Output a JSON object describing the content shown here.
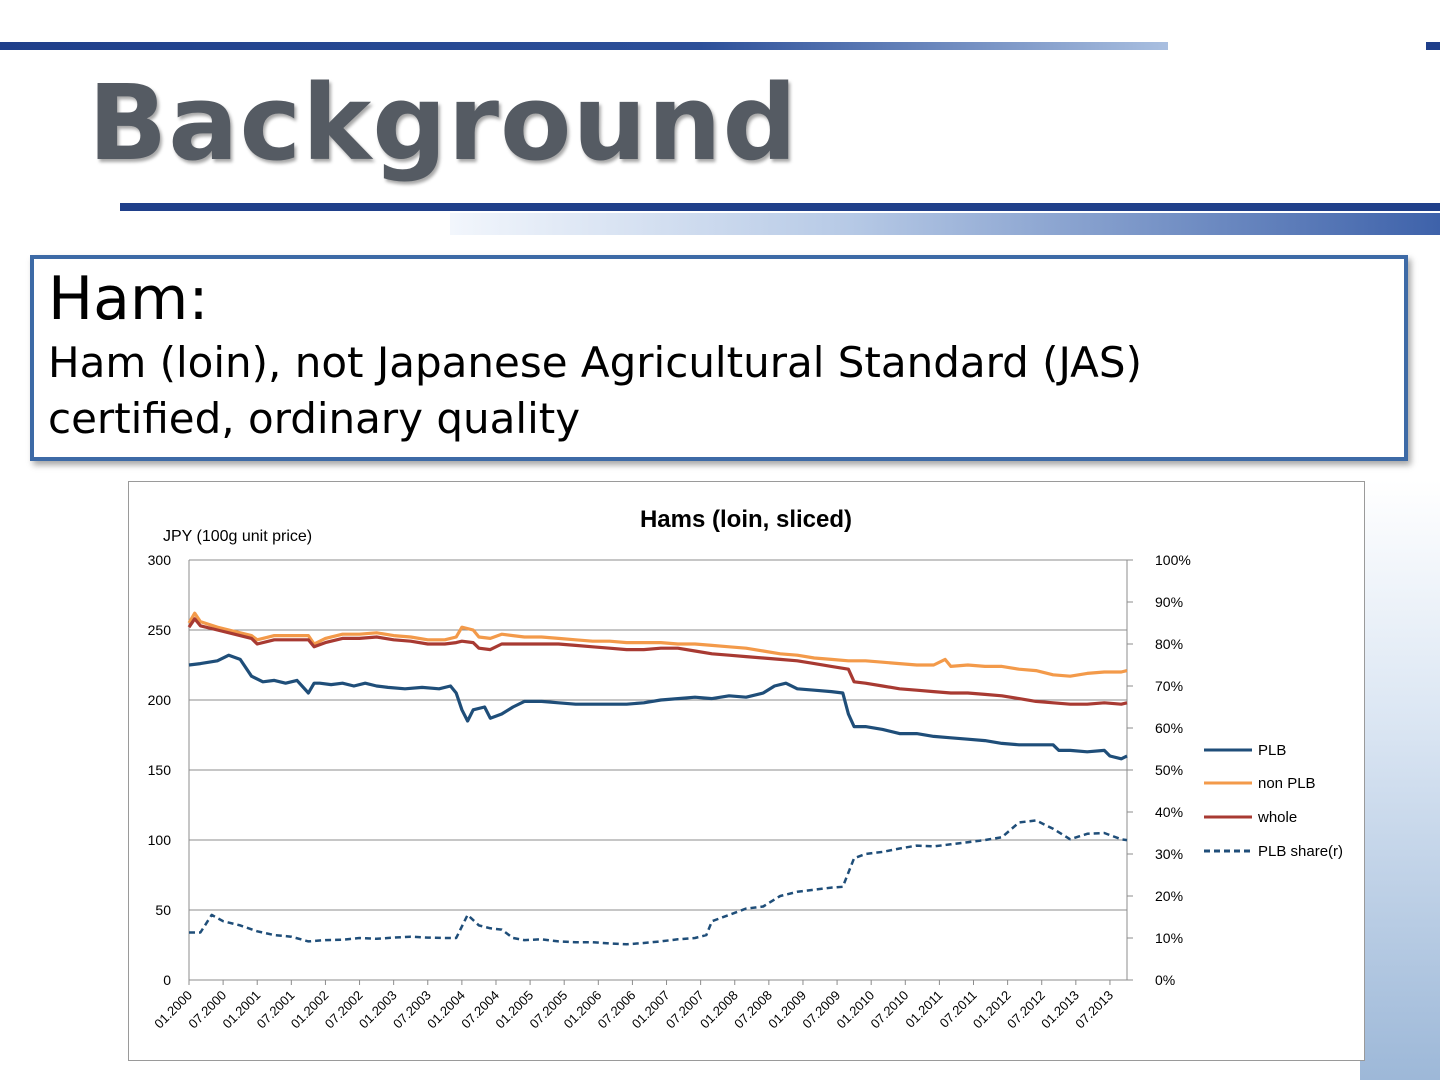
{
  "slide": {
    "title": "Background",
    "box_title": "Ham:",
    "box_line1": "Ham (loin), not Japanese Agricultural Standard (JAS)",
    "box_line2": "certified, ordinary quality"
  },
  "colors": {
    "accent": "#1f3f8a",
    "PLB": "#1f4e79",
    "non PLB": "#f39a4a",
    "whole": "#a83a32",
    "PLB share(r)": "#1f4e79"
  },
  "chart_data": {
    "type": "line",
    "title": "Hams (loin, sliced)",
    "ylabel": "JPY (100g unit price)",
    "ylim": [
      0,
      300
    ],
    "y_ticks": [
      "0",
      "50",
      "100",
      "150",
      "200",
      "250",
      "300"
    ],
    "y2lim": [
      0,
      1
    ],
    "y2_ticks": [
      "0%",
      "10%",
      "20%",
      "30%",
      "40%",
      "50%",
      "60%",
      "70%",
      "80%",
      "90%",
      "100%"
    ],
    "x_tick_labels": [
      "01.2000",
      "07.2000",
      "01.2001",
      "07.2001",
      "01.2002",
      "07.2002",
      "01.2003",
      "07.2003",
      "01.2004",
      "07.2004",
      "01.2005",
      "07.2005",
      "01.2006",
      "07.2006",
      "01.2007",
      "07.2007",
      "01.2008",
      "07.2008",
      "01.2009",
      "07.2009",
      "01.2010",
      "07.2010",
      "01.2011",
      "07.2011",
      "01.2012",
      "07.2012",
      "01.2013",
      "07.2013"
    ],
    "x_start": "01.2000",
    "x_end": "10.2013",
    "grid": true,
    "legend_position": "right",
    "series": [
      {
        "name": "PLB",
        "axis": "left",
        "style": "solid",
        "points": [
          [
            "01.2000",
            225
          ],
          [
            "03.2000",
            226
          ],
          [
            "06.2000",
            228
          ],
          [
            "08.2000",
            232
          ],
          [
            "10.2000",
            229
          ],
          [
            "12.2000",
            217
          ],
          [
            "02.2001",
            213
          ],
          [
            "04.2001",
            214
          ],
          [
            "06.2001",
            212
          ],
          [
            "08.2001",
            214
          ],
          [
            "10.2001",
            205
          ],
          [
            "11.2001",
            212
          ],
          [
            "12.2001",
            212
          ],
          [
            "02.2002",
            211
          ],
          [
            "04.2002",
            212
          ],
          [
            "06.2002",
            210
          ],
          [
            "08.2002",
            212
          ],
          [
            "10.2002",
            210
          ],
          [
            "12.2002",
            209
          ],
          [
            "03.2003",
            208
          ],
          [
            "06.2003",
            209
          ],
          [
            "09.2003",
            208
          ],
          [
            "11.2003",
            210
          ],
          [
            "12.2003",
            205
          ],
          [
            "01.2004",
            193
          ],
          [
            "02.2004",
            185
          ],
          [
            "03.2004",
            193
          ],
          [
            "05.2004",
            195
          ],
          [
            "06.2004",
            187
          ],
          [
            "08.2004",
            190
          ],
          [
            "10.2004",
            195
          ],
          [
            "12.2004",
            199
          ],
          [
            "03.2005",
            199
          ],
          [
            "06.2005",
            198
          ],
          [
            "09.2005",
            197
          ],
          [
            "12.2005",
            197
          ],
          [
            "03.2006",
            197
          ],
          [
            "06.2006",
            197
          ],
          [
            "09.2006",
            198
          ],
          [
            "12.2006",
            200
          ],
          [
            "03.2007",
            201
          ],
          [
            "06.2007",
            202
          ],
          [
            "09.2007",
            201
          ],
          [
            "12.2007",
            203
          ],
          [
            "03.2008",
            202
          ],
          [
            "06.2008",
            205
          ],
          [
            "08.2008",
            210
          ],
          [
            "10.2008",
            212
          ],
          [
            "12.2008",
            208
          ],
          [
            "03.2009",
            207
          ],
          [
            "06.2009",
            206
          ],
          [
            "08.2009",
            205
          ],
          [
            "09.2009",
            190
          ],
          [
            "10.2009",
            181
          ],
          [
            "12.2009",
            181
          ],
          [
            "03.2010",
            179
          ],
          [
            "06.2010",
            176
          ],
          [
            "09.2010",
            176
          ],
          [
            "12.2010",
            174
          ],
          [
            "03.2011",
            173
          ],
          [
            "06.2011",
            172
          ],
          [
            "09.2011",
            171
          ],
          [
            "12.2011",
            169
          ],
          [
            "03.2012",
            168
          ],
          [
            "06.2012",
            168
          ],
          [
            "09.2012",
            168
          ],
          [
            "10.2012",
            164
          ],
          [
            "12.2012",
            164
          ],
          [
            "03.2013",
            163
          ],
          [
            "06.2013",
            164
          ],
          [
            "07.2013",
            160
          ],
          [
            "09.2013",
            158
          ],
          [
            "10.2013",
            160
          ]
        ]
      },
      {
        "name": "non PLB",
        "axis": "left",
        "style": "solid",
        "points": [
          [
            "01.2000",
            255
          ],
          [
            "02.2000",
            262
          ],
          [
            "03.2000",
            256
          ],
          [
            "06.2000",
            252
          ],
          [
            "09.2000",
            249
          ],
          [
            "12.2000",
            246
          ],
          [
            "01.2001",
            243
          ],
          [
            "04.2001",
            246
          ],
          [
            "07.2001",
            246
          ],
          [
            "10.2001",
            246
          ],
          [
            "11.2001",
            240
          ],
          [
            "01.2002",
            244
          ],
          [
            "04.2002",
            247
          ],
          [
            "07.2002",
            247
          ],
          [
            "10.2002",
            248
          ],
          [
            "01.2003",
            246
          ],
          [
            "04.2003",
            245
          ],
          [
            "07.2003",
            243
          ],
          [
            "10.2003",
            243
          ],
          [
            "12.2003",
            245
          ],
          [
            "01.2004",
            252
          ],
          [
            "03.2004",
            250
          ],
          [
            "04.2004",
            245
          ],
          [
            "06.2004",
            244
          ],
          [
            "08.2004",
            247
          ],
          [
            "10.2004",
            246
          ],
          [
            "12.2004",
            245
          ],
          [
            "03.2005",
            245
          ],
          [
            "06.2005",
            244
          ],
          [
            "09.2005",
            243
          ],
          [
            "12.2005",
            242
          ],
          [
            "03.2006",
            242
          ],
          [
            "06.2006",
            241
          ],
          [
            "09.2006",
            241
          ],
          [
            "12.2006",
            241
          ],
          [
            "03.2007",
            240
          ],
          [
            "06.2007",
            240
          ],
          [
            "09.2007",
            239
          ],
          [
            "12.2007",
            238
          ],
          [
            "03.2008",
            237
          ],
          [
            "06.2008",
            235
          ],
          [
            "09.2008",
            233
          ],
          [
            "12.2008",
            232
          ],
          [
            "03.2009",
            230
          ],
          [
            "06.2009",
            229
          ],
          [
            "09.2009",
            228
          ],
          [
            "12.2009",
            228
          ],
          [
            "03.2010",
            227
          ],
          [
            "06.2010",
            226
          ],
          [
            "09.2010",
            225
          ],
          [
            "12.2010",
            225
          ],
          [
            "02.2011",
            229
          ],
          [
            "03.2011",
            224
          ],
          [
            "06.2011",
            225
          ],
          [
            "09.2011",
            224
          ],
          [
            "12.2011",
            224
          ],
          [
            "03.2012",
            222
          ],
          [
            "06.2012",
            221
          ],
          [
            "09.2012",
            218
          ],
          [
            "12.2012",
            217
          ],
          [
            "03.2013",
            219
          ],
          [
            "06.2013",
            220
          ],
          [
            "09.2013",
            220
          ],
          [
            "10.2013",
            221
          ]
        ]
      },
      {
        "name": "whole",
        "axis": "left",
        "style": "solid",
        "points": [
          [
            "01.2000",
            252
          ],
          [
            "02.2000",
            258
          ],
          [
            "03.2000",
            253
          ],
          [
            "06.2000",
            250
          ],
          [
            "09.2000",
            247
          ],
          [
            "12.2000",
            244
          ],
          [
            "01.2001",
            240
          ],
          [
            "04.2001",
            243
          ],
          [
            "07.2001",
            243
          ],
          [
            "10.2001",
            243
          ],
          [
            "11.2001",
            238
          ],
          [
            "01.2002",
            241
          ],
          [
            "04.2002",
            244
          ],
          [
            "07.2002",
            244
          ],
          [
            "10.2002",
            245
          ],
          [
            "01.2003",
            243
          ],
          [
            "04.2003",
            242
          ],
          [
            "07.2003",
            240
          ],
          [
            "10.2003",
            240
          ],
          [
            "12.2003",
            241
          ],
          [
            "01.2004",
            242
          ],
          [
            "03.2004",
            241
          ],
          [
            "04.2004",
            237
          ],
          [
            "06.2004",
            236
          ],
          [
            "08.2004",
            240
          ],
          [
            "10.2004",
            240
          ],
          [
            "12.2004",
            240
          ],
          [
            "03.2005",
            240
          ],
          [
            "06.2005",
            240
          ],
          [
            "09.2005",
            239
          ],
          [
            "12.2005",
            238
          ],
          [
            "03.2006",
            237
          ],
          [
            "06.2006",
            236
          ],
          [
            "09.2006",
            236
          ],
          [
            "12.2006",
            237
          ],
          [
            "03.2007",
            237
          ],
          [
            "06.2007",
            235
          ],
          [
            "09.2007",
            233
          ],
          [
            "12.2007",
            232
          ],
          [
            "03.2008",
            231
          ],
          [
            "06.2008",
            230
          ],
          [
            "09.2008",
            229
          ],
          [
            "12.2008",
            228
          ],
          [
            "03.2009",
            226
          ],
          [
            "06.2009",
            224
          ],
          [
            "09.2009",
            222
          ],
          [
            "10.2009",
            213
          ],
          [
            "12.2009",
            212
          ],
          [
            "03.2010",
            210
          ],
          [
            "06.2010",
            208
          ],
          [
            "09.2010",
            207
          ],
          [
            "12.2010",
            206
          ],
          [
            "03.2011",
            205
          ],
          [
            "06.2011",
            205
          ],
          [
            "09.2011",
            204
          ],
          [
            "12.2011",
            203
          ],
          [
            "03.2012",
            201
          ],
          [
            "06.2012",
            199
          ],
          [
            "09.2012",
            198
          ],
          [
            "12.2012",
            197
          ],
          [
            "03.2013",
            197
          ],
          [
            "06.2013",
            198
          ],
          [
            "09.2013",
            197
          ],
          [
            "10.2013",
            198
          ]
        ]
      },
      {
        "name": "PLB share(r)",
        "axis": "right",
        "style": "dashed",
        "points": [
          [
            "01.2000",
            0.113
          ],
          [
            "03.2000",
            0.113
          ],
          [
            "05.2000",
            0.155
          ],
          [
            "07.2000",
            0.14
          ],
          [
            "10.2000",
            0.13
          ],
          [
            "01.2001",
            0.116
          ],
          [
            "04.2001",
            0.107
          ],
          [
            "07.2001",
            0.103
          ],
          [
            "10.2001",
            0.092
          ],
          [
            "01.2002",
            0.095
          ],
          [
            "04.2002",
            0.096
          ],
          [
            "07.2002",
            0.1
          ],
          [
            "10.2002",
            0.098
          ],
          [
            "01.2003",
            0.101
          ],
          [
            "04.2003",
            0.103
          ],
          [
            "07.2003",
            0.101
          ],
          [
            "10.2003",
            0.1
          ],
          [
            "12.2003",
            0.1
          ],
          [
            "02.2004",
            0.155
          ],
          [
            "04.2004",
            0.13
          ],
          [
            "06.2004",
            0.123
          ],
          [
            "08.2004",
            0.12
          ],
          [
            "10.2004",
            0.1
          ],
          [
            "12.2004",
            0.095
          ],
          [
            "03.2005",
            0.097
          ],
          [
            "06.2005",
            0.092
          ],
          [
            "09.2005",
            0.09
          ],
          [
            "12.2005",
            0.09
          ],
          [
            "03.2006",
            0.087
          ],
          [
            "06.2006",
            0.085
          ],
          [
            "09.2006",
            0.088
          ],
          [
            "12.2006",
            0.092
          ],
          [
            "03.2007",
            0.097
          ],
          [
            "06.2007",
            0.1
          ],
          [
            "08.2007",
            0.107
          ],
          [
            "09.2007",
            0.14
          ],
          [
            "12.2007",
            0.155
          ],
          [
            "03.2008",
            0.17
          ],
          [
            "06.2008",
            0.175
          ],
          [
            "09.2008",
            0.2
          ],
          [
            "12.2008",
            0.21
          ],
          [
            "03.2009",
            0.215
          ],
          [
            "06.2009",
            0.22
          ],
          [
            "08.2009",
            0.222
          ],
          [
            "10.2009",
            0.29
          ],
          [
            "12.2009",
            0.3
          ],
          [
            "03.2010",
            0.305
          ],
          [
            "06.2010",
            0.313
          ],
          [
            "09.2010",
            0.32
          ],
          [
            "12.2010",
            0.318
          ],
          [
            "03.2011",
            0.323
          ],
          [
            "06.2011",
            0.328
          ],
          [
            "09.2011",
            0.333
          ],
          [
            "12.2011",
            0.34
          ],
          [
            "03.2012",
            0.375
          ],
          [
            "06.2012",
            0.38
          ],
          [
            "09.2012",
            0.36
          ],
          [
            "12.2012",
            0.335
          ],
          [
            "03.2013",
            0.348
          ],
          [
            "06.2013",
            0.35
          ],
          [
            "09.2013",
            0.335
          ],
          [
            "10.2013",
            0.333
          ]
        ]
      }
    ]
  }
}
